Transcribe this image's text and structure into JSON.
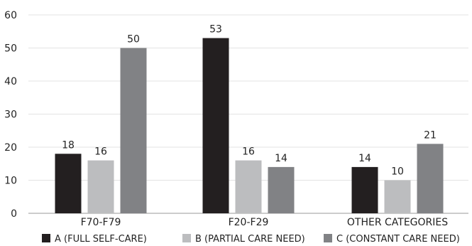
{
  "chart_data": {
    "type": "bar",
    "categories": [
      "F70-F79",
      "F20-F29",
      "OTHER CATEGORIES"
    ],
    "series": [
      {
        "name": "A (FULL SELF-CARE)",
        "values": [
          18,
          53,
          14
        ],
        "color": "#231f20"
      },
      {
        "name": "B (PARTIAL CARE NEED)",
        "values": [
          16,
          16,
          10
        ],
        "color": "#bcbdbf"
      },
      {
        "name": "C (CONSTANT CARE NEED)",
        "values": [
          50,
          14,
          21
        ],
        "color": "#818285"
      }
    ],
    "ylim": [
      0,
      60
    ],
    "yticks": [
      0,
      10,
      20,
      30,
      40,
      50,
      60
    ],
    "grid": true,
    "legend": "bottom",
    "colors": {
      "grid": "#e3e3e3",
      "axis": "#9a9a9a",
      "text": "#222222"
    }
  }
}
